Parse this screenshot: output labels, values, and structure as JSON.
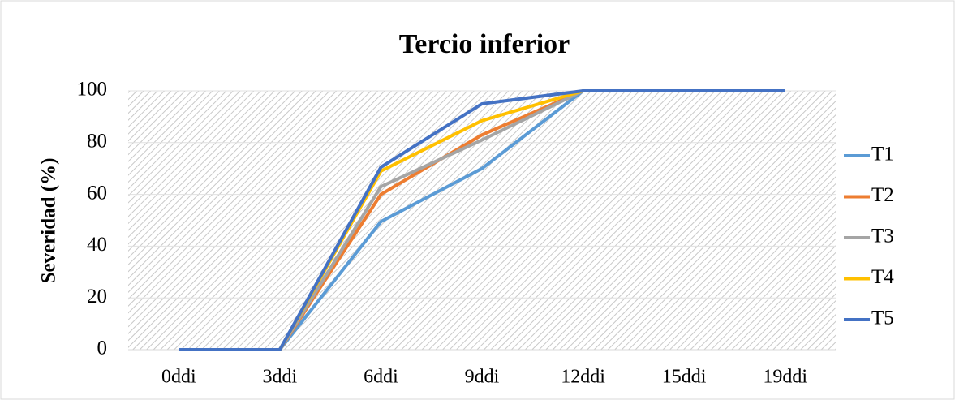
{
  "chart_data": {
    "type": "line",
    "title": "Tercio inferior",
    "y_label": "Severidad (%)",
    "categories": [
      "0ddi",
      "3ddi",
      "6ddi",
      "9ddi",
      "12ddi",
      "15ddi",
      "19ddi"
    ],
    "series": [
      {
        "name": "T1",
        "color": "#5b9bd5",
        "values": [
          0,
          0,
          49.5,
          70,
          100,
          100,
          100
        ]
      },
      {
        "name": "T2",
        "color": "#ed7d31",
        "values": [
          0,
          0,
          60,
          83,
          100,
          100,
          100
        ]
      },
      {
        "name": "T3",
        "color": "#a5a5a5",
        "values": [
          0,
          0,
          63,
          81,
          100,
          100,
          100
        ]
      },
      {
        "name": "T4",
        "color": "#ffc000",
        "values": [
          0,
          0,
          69,
          88.5,
          100,
          100,
          100
        ]
      },
      {
        "name": "T5",
        "color": "#4472c4",
        "values": [
          0,
          0,
          70.5,
          95,
          100,
          100,
          100
        ]
      }
    ],
    "ylim": [
      0,
      100
    ],
    "yticks": [
      0,
      20,
      40,
      60,
      80,
      100
    ],
    "grid": true,
    "legend": "right"
  }
}
